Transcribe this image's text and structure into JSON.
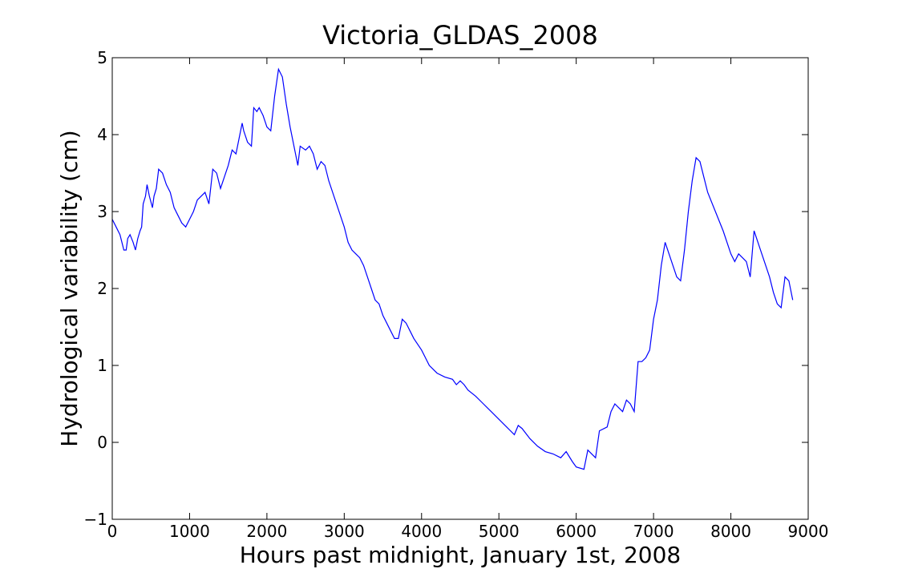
{
  "chart_data": {
    "type": "line",
    "title": "Victoria_GLDAS_2008",
    "x_label": "Hours past midnight, January 1st, 2008",
    "y_label": "Hydrological variability (cm)",
    "color": "#0000ff",
    "x": [
      0,
      50,
      100,
      150,
      180,
      200,
      230,
      270,
      300,
      330,
      360,
      380,
      400,
      430,
      450,
      480,
      520,
      540,
      570,
      600,
      650,
      700,
      750,
      800,
      850,
      900,
      950,
      1000,
      1050,
      1100,
      1150,
      1200,
      1250,
      1300,
      1350,
      1400,
      1450,
      1500,
      1550,
      1600,
      1650,
      1680,
      1700,
      1750,
      1800,
      1830,
      1870,
      1900,
      1950,
      2000,
      2050,
      2100,
      2150,
      2200,
      2250,
      2300,
      2350,
      2400,
      2430,
      2500,
      2550,
      2600,
      2650,
      2700,
      2750,
      2800,
      2900,
      3000,
      3050,
      3100,
      3150,
      3200,
      3250,
      3300,
      3350,
      3400,
      3450,
      3500,
      3550,
      3600,
      3650,
      3700,
      3750,
      3800,
      3850,
      3900,
      4000,
      4050,
      4100,
      4200,
      4300,
      4400,
      4450,
      4500,
      4550,
      4600,
      4700,
      4800,
      4900,
      5000,
      5100,
      5200,
      5250,
      5300,
      5400,
      5500,
      5600,
      5700,
      5800,
      5870,
      5950,
      6000,
      6100,
      6150,
      6200,
      6250,
      6300,
      6400,
      6450,
      6500,
      6550,
      6600,
      6650,
      6700,
      6750,
      6800,
      6850,
      6900,
      6950,
      7000,
      7050,
      7100,
      7150,
      7200,
      7250,
      7300,
      7350,
      7400,
      7450,
      7500,
      7550,
      7600,
      7650,
      7700,
      7800,
      7900,
      8000,
      8050,
      8100,
      8150,
      8200,
      8250,
      8300,
      8350,
      8400,
      8450,
      8500,
      8550,
      8600,
      8650,
      8700,
      8750,
      8800
    ],
    "values": [
      2.9,
      2.8,
      2.7,
      2.5,
      2.5,
      2.65,
      2.7,
      2.6,
      2.5,
      2.65,
      2.75,
      2.8,
      3.1,
      3.2,
      3.35,
      3.2,
      3.05,
      3.2,
      3.3,
      3.55,
      3.5,
      3.35,
      3.25,
      3.05,
      2.95,
      2.85,
      2.8,
      2.9,
      3.0,
      3.15,
      3.2,
      3.25,
      3.1,
      3.55,
      3.5,
      3.3,
      3.45,
      3.6,
      3.8,
      3.75,
      4.0,
      4.15,
      4.05,
      3.9,
      3.85,
      4.35,
      4.3,
      4.35,
      4.25,
      4.1,
      4.05,
      4.5,
      4.85,
      4.75,
      4.4,
      4.1,
      3.85,
      3.6,
      3.85,
      3.8,
      3.85,
      3.75,
      3.55,
      3.65,
      3.6,
      3.4,
      3.1,
      2.8,
      2.6,
      2.5,
      2.45,
      2.4,
      2.3,
      2.15,
      2.0,
      1.85,
      1.8,
      1.65,
      1.55,
      1.45,
      1.35,
      1.35,
      1.6,
      1.55,
      1.45,
      1.35,
      1.2,
      1.1,
      1.0,
      0.9,
      0.85,
      0.82,
      0.75,
      0.8,
      0.75,
      0.68,
      0.6,
      0.5,
      0.4,
      0.3,
      0.2,
      0.1,
      0.22,
      0.18,
      0.05,
      -0.05,
      -0.12,
      -0.15,
      -0.2,
      -0.12,
      -0.25,
      -0.32,
      -0.35,
      -0.1,
      -0.15,
      -0.2,
      0.15,
      0.2,
      0.4,
      0.5,
      0.45,
      0.4,
      0.55,
      0.5,
      0.4,
      1.05,
      1.05,
      1.1,
      1.2,
      1.6,
      1.85,
      2.3,
      2.6,
      2.45,
      2.3,
      2.15,
      2.1,
      2.5,
      3.0,
      3.4,
      3.7,
      3.65,
      3.45,
      3.25,
      3.0,
      2.75,
      2.45,
      2.35,
      2.45,
      2.4,
      2.35,
      2.15,
      2.75,
      2.6,
      2.45,
      2.3,
      2.15,
      1.95,
      1.8,
      1.75,
      2.15,
      2.1,
      1.85
    ],
    "xlim": [
      0,
      9000
    ],
    "xticks": [
      0,
      1000,
      2000,
      3000,
      4000,
      5000,
      6000,
      7000,
      8000,
      9000
    ],
    "ylim": [
      -1,
      5
    ],
    "yticks": [
      {
        "value": -1,
        "label": "−1"
      },
      0,
      1,
      2,
      3,
      4,
      5
    ]
  }
}
